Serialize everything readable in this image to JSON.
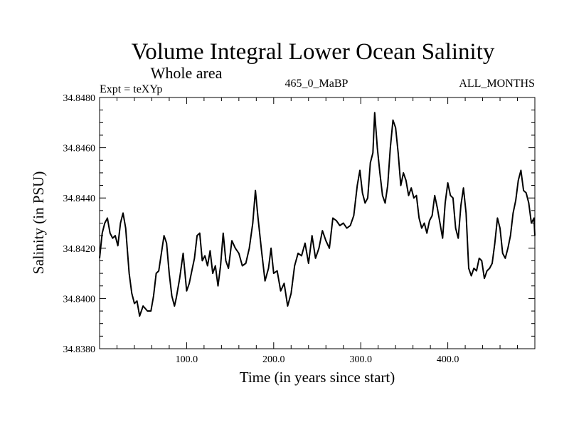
{
  "chart_data": {
    "type": "line",
    "title": "Volume Integral Lower Ocean Salinity",
    "subtitle": "Whole area",
    "experiment": "Expt = teXYp",
    "run": "465_0_MaBP",
    "period": "ALL_MONTHS",
    "xlabel": "Time (in years since start)",
    "ylabel": "Salinity (in PSU)",
    "xlim": [
      0,
      500
    ],
    "ylim": [
      34.838,
      34.848
    ],
    "x_ticks": [
      100,
      200,
      300,
      400
    ],
    "x_tick_labels": [
      "100.0",
      "200.0",
      "300.0",
      "400.0"
    ],
    "y_ticks": [
      34.838,
      34.84,
      34.842,
      34.844,
      34.846,
      34.848
    ],
    "y_tick_labels": [
      "34.8380",
      "34.8400",
      "34.8420",
      "34.8440",
      "34.8460",
      "34.8480"
    ],
    "grid": false,
    "line_color": "#000000",
    "series": [
      {
        "x": [
          0,
          3,
          6,
          9,
          12,
          15,
          18,
          21,
          24,
          27,
          30,
          34,
          37,
          40,
          43,
          46,
          50,
          55,
          59,
          62,
          65,
          68,
          71,
          74,
          77,
          80,
          83,
          86,
          88,
          92,
          96,
          100,
          103,
          106,
          109,
          112,
          115,
          118,
          121,
          124,
          127,
          130,
          133,
          136,
          139,
          142,
          145,
          148,
          152,
          156,
          160,
          164,
          168,
          172,
          176,
          179,
          182,
          186,
          190,
          194,
          197,
          200,
          204,
          208,
          212,
          216,
          220,
          224,
          228,
          232,
          236,
          240,
          244,
          248,
          252,
          256,
          260,
          264,
          268,
          272,
          276,
          280,
          284,
          288,
          292,
          296,
          299,
          302,
          305,
          308,
          311,
          314,
          316,
          319,
          322,
          325,
          328,
          331,
          334,
          337,
          340,
          343,
          346,
          349,
          352,
          355,
          358,
          361,
          364,
          367,
          370,
          373,
          376,
          379,
          382,
          385,
          388,
          391,
          394,
          397,
          400,
          403,
          406,
          409,
          412,
          415,
          418,
          421,
          424,
          427,
          430,
          433,
          436,
          439,
          442,
          445,
          448,
          451,
          454,
          457,
          460,
          463,
          466,
          469,
          472,
          475,
          478,
          481,
          484,
          487,
          490,
          493,
          496,
          499,
          500
        ],
        "y": [
          34.8416,
          34.8426,
          34.843,
          34.8432,
          34.8426,
          34.8424,
          34.8425,
          34.8421,
          34.843,
          34.8434,
          34.8428,
          34.841,
          34.8402,
          34.8398,
          34.8399,
          34.8393,
          34.8397,
          34.8395,
          34.8395,
          34.8401,
          34.841,
          34.8411,
          34.8418,
          34.8425,
          34.8422,
          34.841,
          34.8401,
          34.8397,
          34.84,
          34.8408,
          34.8418,
          34.8403,
          34.8406,
          34.8411,
          34.8416,
          34.8425,
          34.8426,
          34.8415,
          34.8417,
          34.8413,
          34.8419,
          34.841,
          34.8413,
          34.8405,
          34.8413,
          34.8426,
          34.8415,
          34.8412,
          34.8423,
          34.842,
          34.8418,
          34.8413,
          34.8414,
          34.842,
          34.843,
          34.8443,
          34.8432,
          34.8419,
          34.8407,
          34.8412,
          34.842,
          34.841,
          34.8411,
          34.8403,
          34.8406,
          34.8397,
          34.8402,
          34.8413,
          34.8418,
          34.8417,
          34.8422,
          34.8414,
          34.8425,
          34.8416,
          34.842,
          34.8427,
          34.8423,
          34.842,
          34.8432,
          34.8431,
          34.8429,
          34.843,
          34.8428,
          34.8429,
          34.8433,
          34.8445,
          34.8451,
          34.8442,
          34.8438,
          34.844,
          34.8454,
          34.8458,
          34.8474,
          34.846,
          34.845,
          34.8441,
          34.8438,
          34.8445,
          34.846,
          34.8471,
          34.8468,
          34.8458,
          34.8445,
          34.845,
          34.8447,
          34.8441,
          34.8444,
          34.844,
          34.8441,
          34.8432,
          34.8428,
          34.843,
          34.8426,
          34.8431,
          34.8433,
          34.8441,
          34.8436,
          34.843,
          34.8424,
          34.8438,
          34.8446,
          34.8441,
          34.844,
          34.8428,
          34.8424,
          34.8437,
          34.8444,
          34.8434,
          34.8412,
          34.8409,
          34.8412,
          34.8411,
          34.8416,
          34.8415,
          34.8408,
          34.8411,
          34.8412,
          34.8414,
          34.8422,
          34.8432,
          34.8428,
          34.8418,
          34.8416,
          34.842,
          34.8425,
          34.8434,
          34.8439,
          34.8447,
          34.8451,
          34.8443,
          34.8442,
          34.8438,
          34.843,
          34.8432,
          34.8425
        ]
      }
    ]
  }
}
